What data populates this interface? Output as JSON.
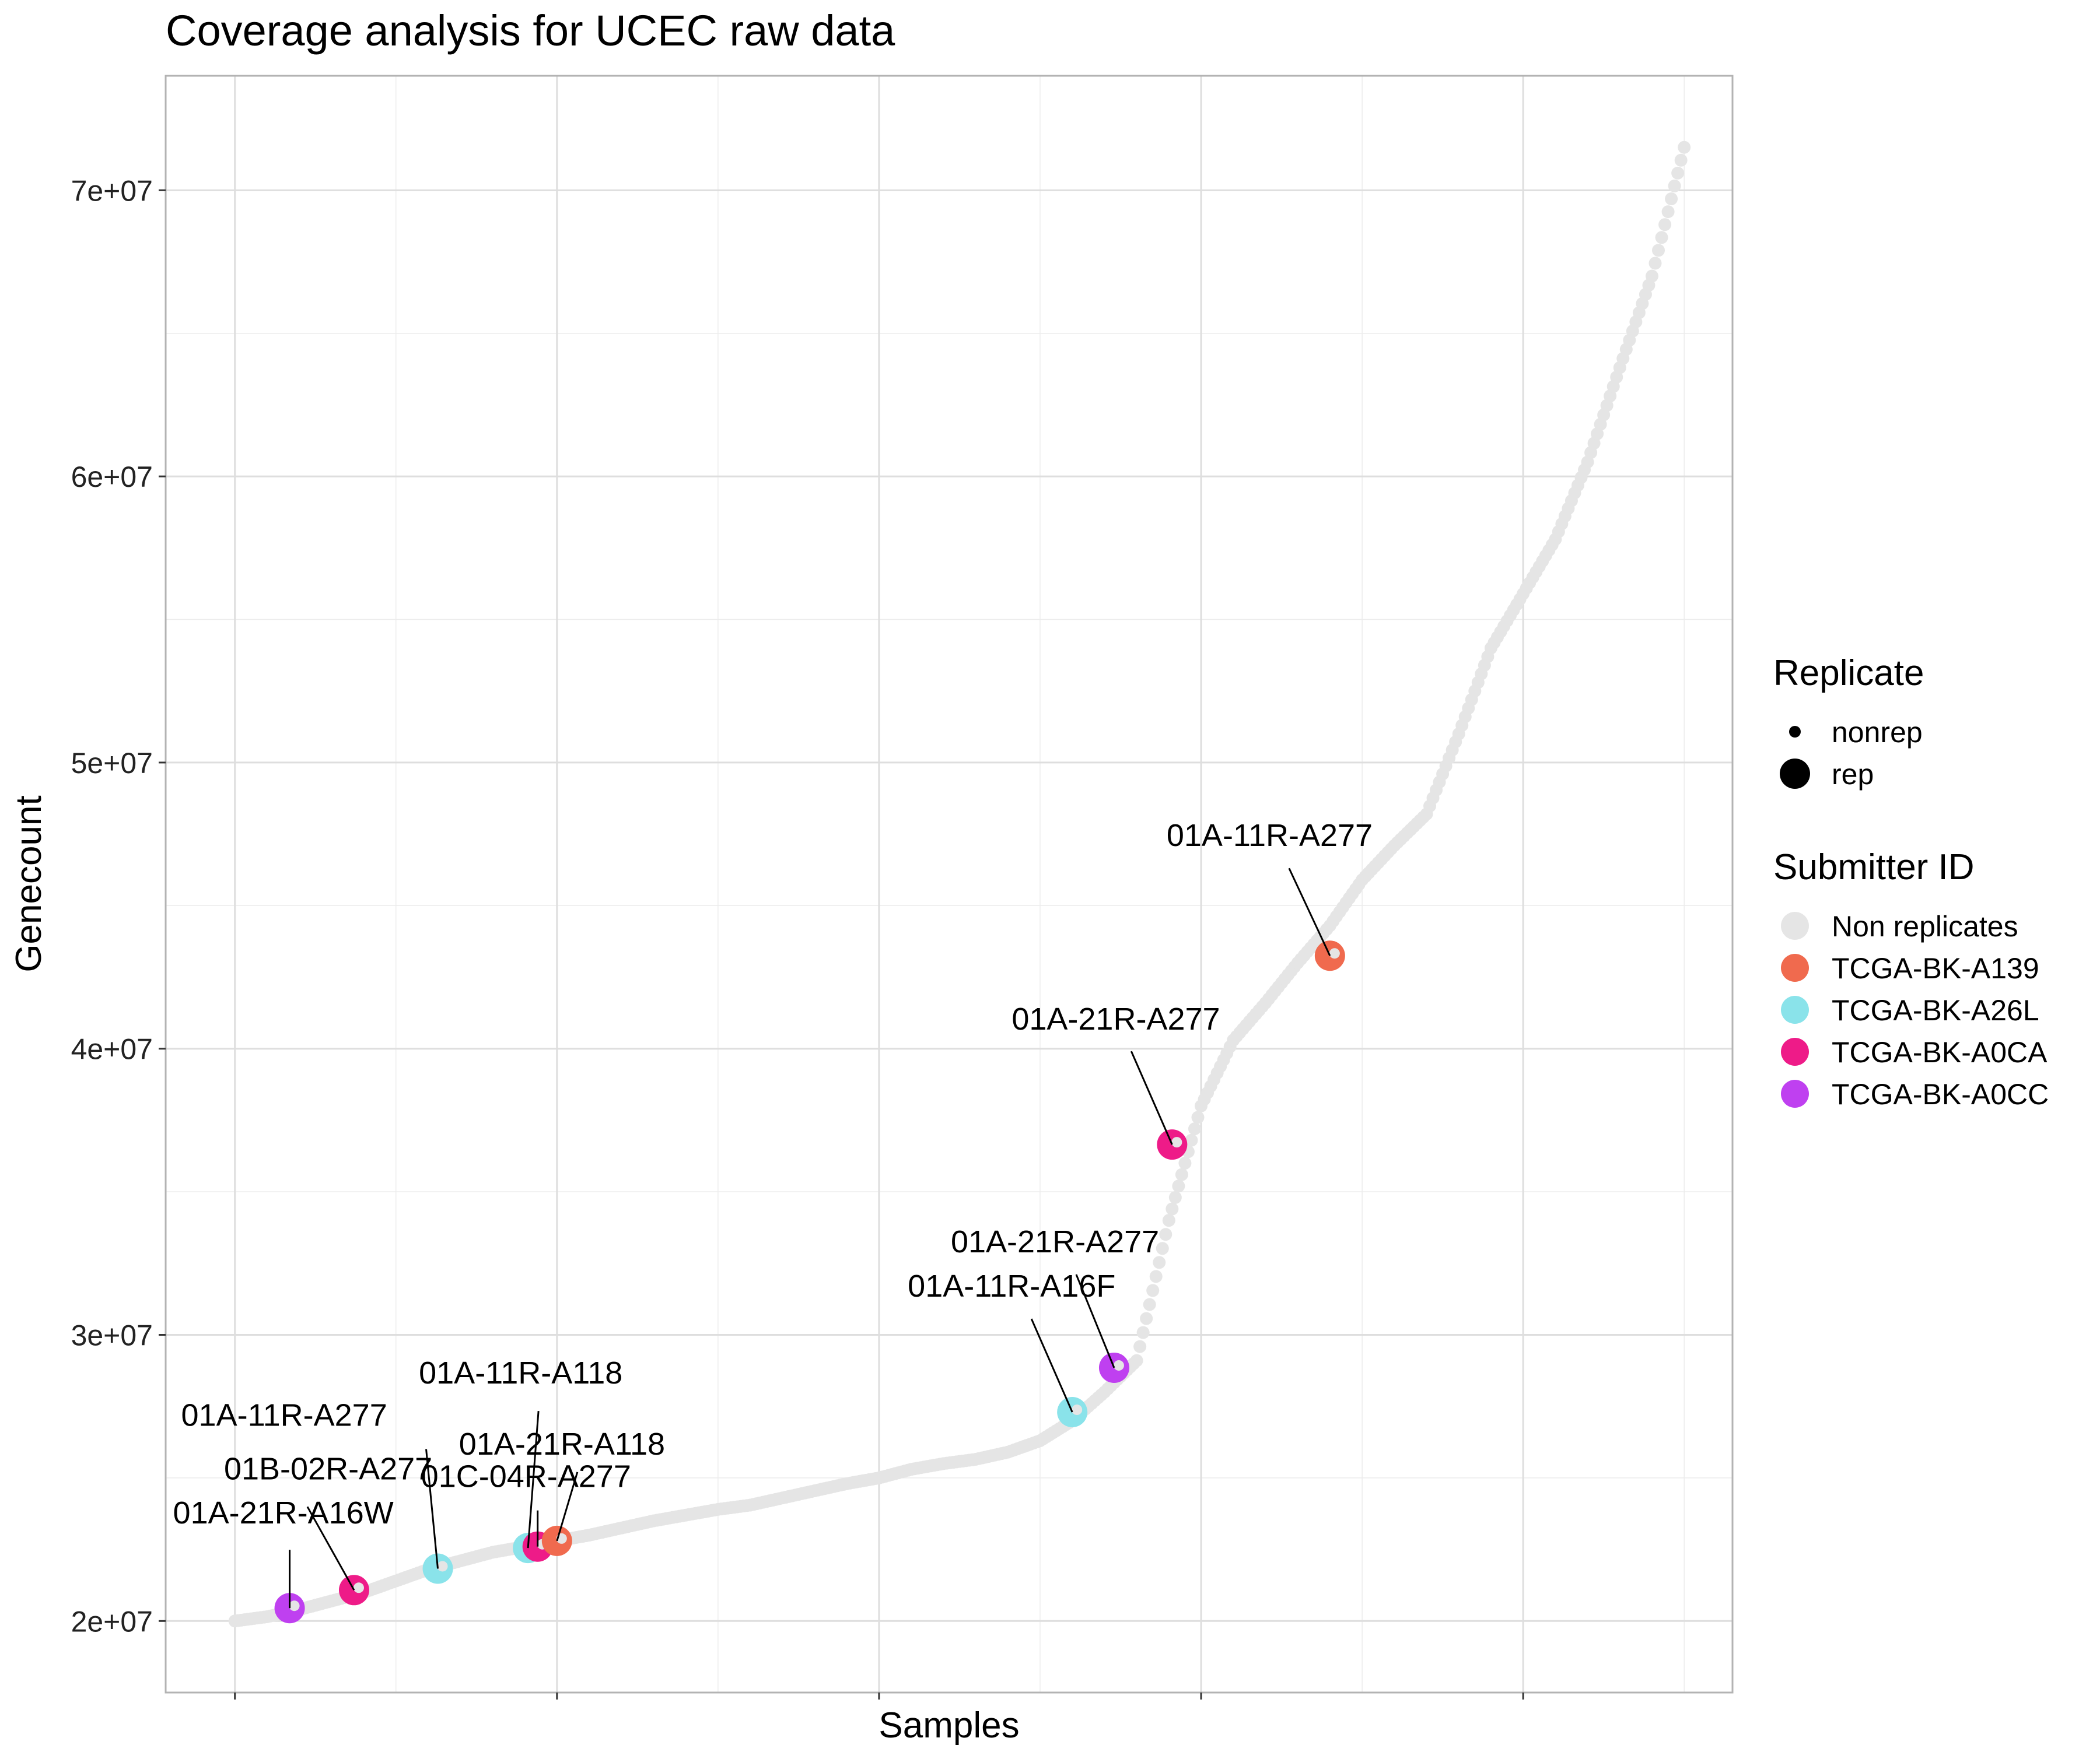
{
  "chart_data": {
    "type": "scatter",
    "title": "Coverage analysis for UCEC raw data",
    "xlabel": "Samples",
    "ylabel": "Genecount",
    "xlim": [
      -21.5,
      465
    ],
    "ylim": [
      17500000,
      74000000
    ],
    "y_ticks": [
      {
        "value": 20000000,
        "label": "2e+07"
      },
      {
        "value": 30000000,
        "label": "3e+07"
      },
      {
        "value": 40000000,
        "label": "4e+07"
      },
      {
        "value": 50000000,
        "label": "5e+07"
      },
      {
        "value": 60000000,
        "label": "6e+07"
      },
      {
        "value": 70000000,
        "label": "7e+07"
      }
    ],
    "y_minor_grid": [
      25000000,
      35000000,
      45000000,
      55000000,
      65000000
    ],
    "x_major_grid": [
      0,
      100,
      200,
      300,
      400
    ],
    "x_minor_grid": [
      50,
      150,
      250,
      350,
      450
    ],
    "grid": true,
    "background_curve": {
      "name": "Non replicates",
      "x": [
        0,
        10,
        20,
        30,
        40,
        50,
        60,
        70,
        80,
        90,
        100,
        110,
        120,
        130,
        140,
        150,
        160,
        170,
        180,
        190,
        200,
        210,
        220,
        230,
        240,
        250,
        260,
        270,
        280,
        290,
        300,
        310,
        320,
        330,
        340,
        350,
        360,
        370,
        380,
        390,
        400,
        410,
        420,
        430,
        440,
        450
      ],
      "y": [
        20000000,
        20150000,
        20400000,
        20700000,
        21000000,
        21400000,
        21800000,
        22100000,
        22400000,
        22600000,
        22800000,
        23000000,
        23250000,
        23500000,
        23700000,
        23900000,
        24050000,
        24300000,
        24550000,
        24800000,
        25000000,
        25300000,
        25500000,
        25650000,
        25900000,
        26300000,
        27000000,
        28000000,
        29100000,
        34000000,
        38000000,
        40300000,
        41600000,
        43000000,
        44300000,
        45900000,
        47100000,
        48200000,
        51000000,
        54000000,
        55900000,
        57800000,
        60500000,
        63800000,
        67000000,
        71500000
      ]
    },
    "series": [
      {
        "name": "Non replicates",
        "color": "#e5e5e5"
      },
      {
        "name": "TCGA-BK-A139",
        "color": "#f06a4e"
      },
      {
        "name": "TCGA-BK-A26L",
        "color": "#8ae3ea"
      },
      {
        "name": "TCGA-BK-A0CA",
        "color": "#ee1b88"
      },
      {
        "name": "TCGA-BK-A0CC",
        "color": "#bf40f0"
      }
    ],
    "replicate_points": [
      {
        "x": 17,
        "y": 20450000,
        "group": "TCGA-BK-A0CC",
        "label": "01A-21R-A16W"
      },
      {
        "x": 37,
        "y": 21080000,
        "group": "TCGA-BK-A0CA",
        "label": "01B-02R-A277"
      },
      {
        "x": 63,
        "y": 21830000,
        "group": "TCGA-BK-A26L",
        "label": "01A-11R-A277"
      },
      {
        "x": 91,
        "y": 22550000,
        "group": "TCGA-BK-A26L",
        "label": "01A-11R-A118"
      },
      {
        "x": 94,
        "y": 22600000,
        "group": "TCGA-BK-A0CA",
        "label": "01C-04R-A277"
      },
      {
        "x": 100,
        "y": 22800000,
        "group": "TCGA-BK-A139",
        "label": "01A-21R-A118"
      },
      {
        "x": 260,
        "y": 27300000,
        "group": "TCGA-BK-A26L",
        "label": "01A-11R-A16F"
      },
      {
        "x": 273,
        "y": 28850000,
        "group": "TCGA-BK-A0CC",
        "label": "01A-21R-A277"
      },
      {
        "x": 291,
        "y": 36650000,
        "group": "TCGA-BK-A0CA",
        "label": "01A-21R-A277"
      },
      {
        "x": 340,
        "y": 43250000,
        "group": "TCGA-BK-A139",
        "label": "01A-11R-A277"
      }
    ],
    "legend": {
      "placement": "right",
      "replicate_title": "Replicate",
      "replicate_items": [
        "nonrep",
        "rep"
      ],
      "submitter_title": "Submitter ID",
      "submitter_items": [
        "Non replicates",
        "TCGA-BK-A139",
        "TCGA-BK-A26L",
        "TCGA-BK-A0CA",
        "TCGA-BK-A0CC"
      ]
    }
  }
}
